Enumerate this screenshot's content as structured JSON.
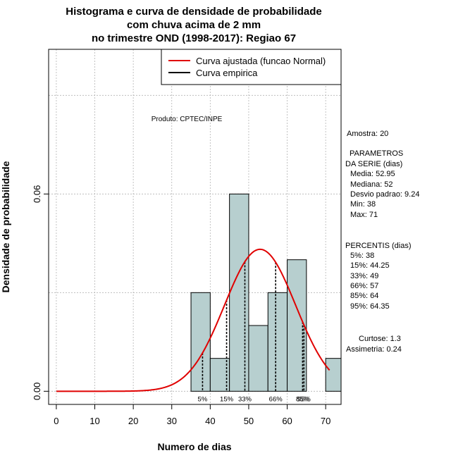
{
  "chart_data": {
    "type": "histogram",
    "title_lines": [
      "Histograma e curva de densidade de probabilidade",
      "com chuva acima de 2 mm",
      "no trimestre OND (1998-2017): Regiao 67"
    ],
    "xlabel": "Numero de dias",
    "ylabel": "Densidade de probabilidade",
    "xlim": [
      -2,
      74
    ],
    "ylim": [
      -0.004,
      0.104
    ],
    "x_ticks": [
      0,
      10,
      20,
      30,
      40,
      50,
      60,
      70
    ],
    "y_ticks": [
      0.0,
      0.06
    ],
    "y_tick_labels": [
      "0.00",
      "0.06"
    ],
    "grid": true,
    "bar_color": "#b7cfcf",
    "bins": [
      {
        "start": 35,
        "end": 40,
        "density": 0.03
      },
      {
        "start": 40,
        "end": 45,
        "density": 0.01
      },
      {
        "start": 45,
        "end": 50,
        "density": 0.06
      },
      {
        "start": 50,
        "end": 55,
        "density": 0.02
      },
      {
        "start": 55,
        "end": 60,
        "density": 0.03
      },
      {
        "start": 60,
        "end": 65,
        "density": 0.04
      },
      {
        "start": 65,
        "end": 70,
        "density": 0.0
      },
      {
        "start": 70,
        "end": 75,
        "density": 0.01
      }
    ],
    "normal_curve": {
      "name": "Curva ajustada (funcao Normal)",
      "mean": 52.95,
      "sd": 9.24,
      "x_range": [
        0,
        71
      ],
      "color": "#e00000"
    },
    "legend": {
      "placement": "top-right",
      "entries": [
        {
          "label": "Curva ajustada (funcao Normal)",
          "color": "#e00000"
        },
        {
          "label": "Curva empirica",
          "color": "#000000"
        }
      ]
    },
    "percentiles": [
      {
        "label": "5%",
        "value": 38
      },
      {
        "label": "15%",
        "value": 44.25
      },
      {
        "label": "33%",
        "value": 49
      },
      {
        "label": "66%",
        "value": 57
      },
      {
        "label": "85%",
        "value": 64
      },
      {
        "label": "95%",
        "value": 64.35
      }
    ],
    "product_note": "Produto: CPTEC/INPE"
  },
  "stats": {
    "sample": "Amostra: 20",
    "params_lines": [
      "PARAMETROS",
      "DA SERIE (dias)"
    ],
    "media": "Media: 52.95",
    "mediana": "Mediana: 52",
    "desvio": "Desvio padrao: 9.24",
    "min": "Min: 38",
    "max": "Max: 71",
    "percentis_title": "PERCENTIS (dias)",
    "percentis": [
      "5%: 38",
      "15%: 44.25",
      "33%: 49",
      "66%: 57",
      "85%: 64",
      "95%: 64.35"
    ],
    "curtose": "Curtose: 1.3",
    "assimetria": "Assimetria: 0.24"
  }
}
